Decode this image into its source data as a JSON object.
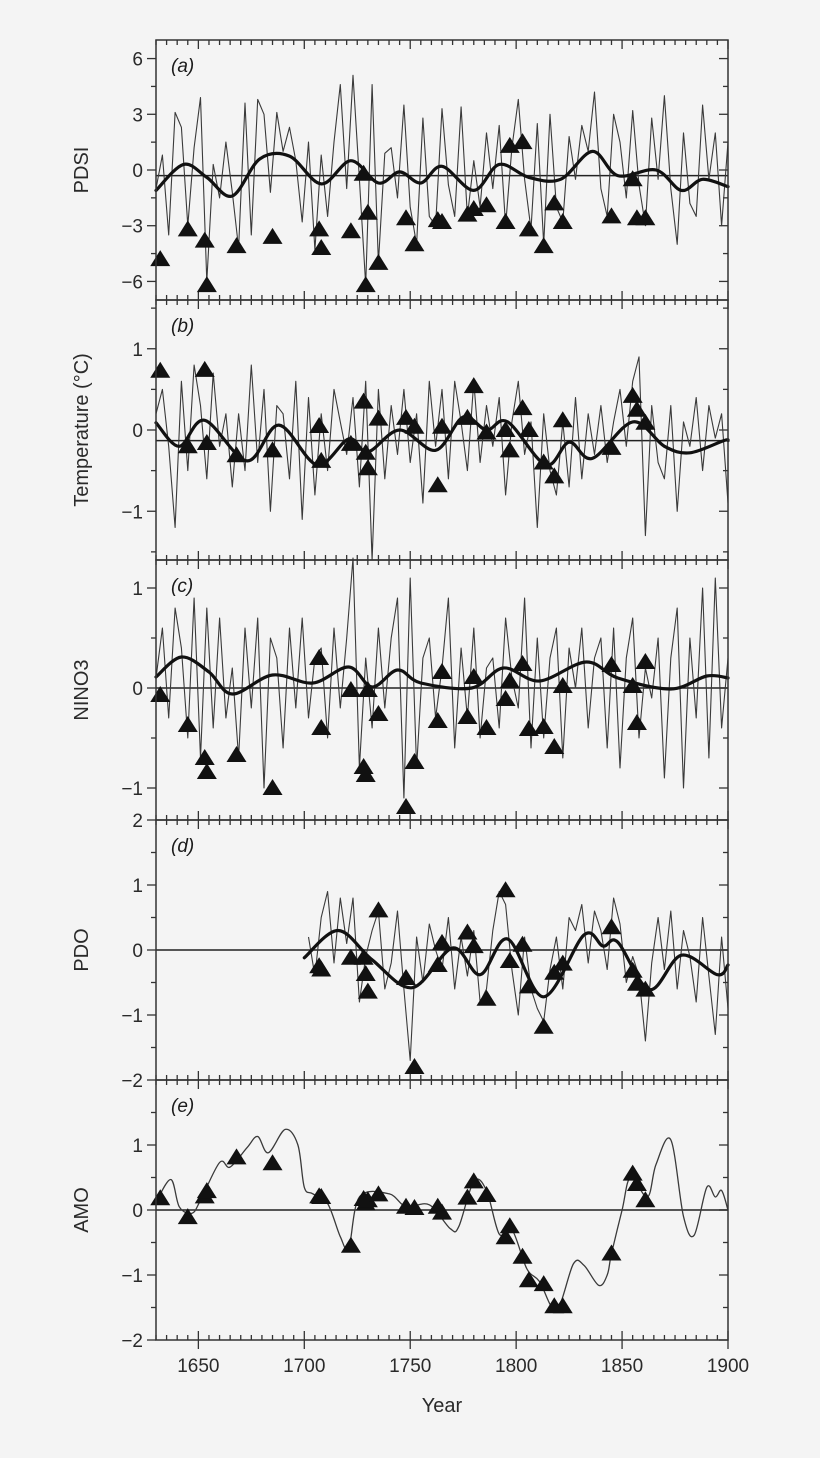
{
  "chart_data": {
    "type": "line",
    "xlabel": "Year",
    "xlim": [
      1630,
      1900
    ],
    "xticks": [
      1650,
      1700,
      1750,
      1800,
      1850,
      1900
    ],
    "annual_years": [
      1630,
      1633,
      1636,
      1639,
      1642,
      1645,
      1648,
      1651,
      1654,
      1657,
      1660,
      1663,
      1666,
      1669,
      1672,
      1675,
      1678,
      1681,
      1684,
      1687,
      1690,
      1693,
      1696,
      1699,
      1702,
      1705,
      1708,
      1711,
      1714,
      1717,
      1720,
      1723,
      1726,
      1729,
      1732,
      1735,
      1738,
      1741,
      1744,
      1747,
      1750,
      1753,
      1756,
      1759,
      1762,
      1765,
      1768,
      1771,
      1774,
      1777,
      1780,
      1783,
      1786,
      1789,
      1792,
      1795,
      1798,
      1801,
      1804,
      1807,
      1810,
      1813,
      1816,
      1819,
      1822,
      1825,
      1828,
      1831,
      1834,
      1837,
      1840,
      1843,
      1846,
      1849,
      1852,
      1855,
      1858,
      1861,
      1864,
      1867,
      1870,
      1873,
      1876,
      1879,
      1882,
      1885,
      1888,
      1891,
      1894,
      1897,
      1900
    ],
    "event_years": [
      1632,
      1645,
      1653,
      1654,
      1668,
      1685,
      1707,
      1708,
      1722,
      1728,
      1729,
      1730,
      1735,
      1748,
      1752,
      1763,
      1765,
      1777,
      1780,
      1786,
      1795,
      1797,
      1803,
      1806,
      1813,
      1818,
      1822,
      1845,
      1855,
      1857,
      1861
    ],
    "colors": {
      "line": "#3a3a3a",
      "smooth": "#111111",
      "marker": "#111111",
      "background": "#f4f4f4"
    },
    "marker": "filled-triangle",
    "panels": [
      {
        "label": "(a)",
        "ylabel": "PDSI",
        "ylim": [
          -7,
          7
        ],
        "yticks": [
          6,
          3,
          0,
          -3,
          -6
        ],
        "ytick_labels": [
          "6",
          "3",
          "0",
          "−3",
          "−6"
        ],
        "reference_line": -0.3,
        "annual": [
          -1.0,
          0.8,
          -3.5,
          3.1,
          2.3,
          -3.0,
          1.2,
          3.9,
          -6.0,
          0.3,
          -1.5,
          1.5,
          -1.2,
          -4.2,
          3.6,
          -3.5,
          3.8,
          3.0,
          -1.2,
          3.1,
          1.0,
          2.3,
          0.5,
          -2.8,
          1.5,
          -4.3,
          0.8,
          -2.5,
          1.5,
          4.6,
          -1.0,
          5.1,
          -0.5,
          -6.2,
          4.6,
          -5.0,
          0.9,
          1.2,
          -1.5,
          3.5,
          -2.0,
          -4.0,
          2.8,
          -2.5,
          -3.0,
          3.3,
          -0.8,
          -2.5,
          3.4,
          -2.5,
          0.5,
          -2.0,
          2.0,
          -1.0,
          2.4,
          -3.0,
          1.2,
          3.8,
          -0.5,
          -3.2,
          2.5,
          -4.0,
          3.0,
          -2.0,
          -2.8,
          1.8,
          -0.5,
          2.4,
          1.0,
          4.2,
          -1.0,
          -2.5,
          3.0,
          1.5,
          -1.5,
          3.2,
          -0.8,
          -3.0,
          2.8,
          -0.5,
          4.0,
          -1.0,
          -4.0,
          2.0,
          -1.8,
          -2.5,
          3.5,
          -0.5,
          2.0,
          -3.0,
          1.5
        ],
        "smooth": {
          "x": [
            1630,
            1643,
            1654,
            1666,
            1679,
            1693,
            1708,
            1722,
            1735,
            1745,
            1755,
            1765,
            1780,
            1792,
            1806,
            1821,
            1836,
            1848,
            1866,
            1878,
            1888,
            1900
          ],
          "y": [
            -1.1,
            0.3,
            -0.4,
            -1.4,
            0.6,
            0.75,
            -0.75,
            0.5,
            -0.7,
            -0.1,
            -0.7,
            0.2,
            -1.1,
            0.3,
            -0.4,
            -0.5,
            1.0,
            -0.3,
            0.0,
            -1.1,
            -0.5,
            -0.9
          ]
        },
        "events": [
          -4.8,
          -3.2,
          -3.8,
          -6.2,
          -4.1,
          -3.6,
          -3.2,
          -4.2,
          -3.3,
          -0.2,
          -6.2,
          -2.3,
          -5.0,
          -2.6,
          -4.0,
          -2.7,
          -2.8,
          -2.4,
          -2.1,
          -1.9,
          -2.8,
          1.3,
          1.5,
          -3.2,
          -4.1,
          -1.8,
          -2.8,
          -2.5,
          -0.5,
          -2.6,
          -2.6
        ]
      },
      {
        "label": "(b)",
        "ylabel": "Temperature (°C)",
        "ylim": [
          -1.6,
          1.6
        ],
        "yticks": [
          1,
          0,
          -1
        ],
        "ytick_labels": [
          "1",
          "0",
          "−1"
        ],
        "reference_line": -0.13,
        "annual": [
          0.2,
          0.5,
          -0.2,
          -1.2,
          0.6,
          -0.5,
          0.8,
          0.3,
          -0.6,
          0.7,
          -0.2,
          0.2,
          -0.7,
          0.2,
          -0.5,
          0.8,
          -0.4,
          0.5,
          -1.0,
          0.3,
          0.2,
          -0.6,
          0.6,
          -1.1,
          0.4,
          -0.8,
          0.2,
          -0.5,
          0.5,
          0.1,
          -0.3,
          0.4,
          -0.7,
          0.6,
          -1.6,
          0.5,
          -0.6,
          0.3,
          -0.3,
          0.5,
          -0.4,
          0.2,
          -0.9,
          0.6,
          -0.2,
          0.5,
          -0.6,
          0.6,
          0.1,
          -0.5,
          0.6,
          -0.4,
          0.3,
          -0.2,
          0.4,
          -0.8,
          0.1,
          0.6,
          -0.3,
          0.1,
          -1.2,
          0.2,
          -0.5,
          -0.8,
          0.1,
          -0.7,
          0.4,
          -0.6,
          0.2,
          -0.3,
          0.3,
          -0.4,
          0.1,
          0.5,
          -0.2,
          0.6,
          0.9,
          -1.3,
          0.3,
          -0.4,
          -0.6,
          0.3,
          -1.0,
          0.1,
          -0.2,
          0.4,
          -0.5,
          0.3,
          -0.1,
          0.2,
          -0.9
        ],
        "smooth": {
          "x": [
            1630,
            1641,
            1653,
            1673,
            1688,
            1706,
            1721,
            1730,
            1745,
            1762,
            1775,
            1786,
            1796,
            1814,
            1825,
            1836,
            1855,
            1870,
            1882,
            1898,
            1900
          ],
          "y": [
            0.09,
            -0.2,
            0.12,
            -0.38,
            0.06,
            -0.43,
            -0.11,
            -0.27,
            0.0,
            -0.25,
            0.16,
            0.0,
            0.1,
            -0.43,
            -0.15,
            -0.35,
            0.1,
            -0.2,
            -0.28,
            -0.13,
            -0.13
          ]
        },
        "events": [
          0.73,
          -0.2,
          0.74,
          -0.16,
          -0.31,
          -0.25,
          0.05,
          -0.38,
          -0.17,
          0.35,
          -0.28,
          -0.47,
          0.14,
          0.15,
          0.04,
          -0.68,
          0.04,
          0.15,
          0.54,
          -0.03,
          0.0,
          -0.25,
          0.27,
          0.0,
          -0.4,
          -0.57,
          0.12,
          -0.22,
          0.42,
          0.25,
          0.09
        ]
      },
      {
        "label": "(c)",
        "ylabel": "NINO3",
        "ylim": [
          -1.32,
          1.28
        ],
        "yticks": [
          1,
          0,
          -1
        ],
        "ytick_labels": [
          "1",
          "0",
          "−1"
        ],
        "reference_line": 0,
        "annual": [
          0.1,
          0.6,
          -0.3,
          0.8,
          0.4,
          -0.5,
          0.9,
          -0.7,
          0.8,
          -0.4,
          0.7,
          -0.3,
          0.2,
          -0.7,
          0.6,
          -0.2,
          0.7,
          -1.0,
          0.5,
          0.3,
          -0.6,
          0.6,
          -0.2,
          0.7,
          -0.3,
          0.3,
          0.4,
          -0.5,
          0.6,
          -0.2,
          0.5,
          1.3,
          -0.8,
          0.3,
          -0.4,
          0.6,
          -0.2,
          0.5,
          0.9,
          -1.1,
          1.1,
          -0.8,
          0.3,
          0.5,
          -0.3,
          0.2,
          0.9,
          -0.6,
          0.4,
          -0.3,
          0.6,
          -0.5,
          0.2,
          0.3,
          -0.4,
          0.7,
          0.1,
          -0.2,
          0.9,
          -0.6,
          0.5,
          -0.5,
          0.3,
          0.6,
          -0.7,
          0.4,
          0.0,
          0.6,
          -0.4,
          0.3,
          0.5,
          -0.6,
          0.6,
          -0.8,
          0.3,
          0.7,
          -0.5,
          0.2,
          -0.1,
          0.5,
          -0.9,
          0.3,
          0.8,
          -1.0,
          0.5,
          -0.3,
          1.0,
          -0.7,
          1.1,
          -0.4,
          0.3
        ],
        "smooth": {
          "x": [
            1630,
            1642,
            1655,
            1666,
            1685,
            1704,
            1721,
            1732,
            1744,
            1755,
            1779,
            1794,
            1811,
            1833,
            1848,
            1873,
            1890,
            1900
          ],
          "y": [
            0.11,
            0.31,
            0.16,
            -0.06,
            0.13,
            0.05,
            0.21,
            0.01,
            0.18,
            0.05,
            0.0,
            0.2,
            0.07,
            0.26,
            0.1,
            -0.01,
            0.12,
            0.1
          ]
        },
        "events": [
          -0.07,
          -0.37,
          -0.7,
          -0.84,
          -0.67,
          -1.0,
          0.3,
          -0.4,
          -0.02,
          -0.79,
          -0.87,
          -0.02,
          -0.26,
          -1.19,
          -0.74,
          -0.33,
          0.16,
          -0.29,
          0.11,
          -0.4,
          -0.11,
          0.07,
          0.24,
          -0.41,
          -0.39,
          -0.59,
          0.02,
          0.23,
          0.02,
          -0.35,
          0.26
        ]
      },
      {
        "label": "(d)",
        "ylabel": "PDO",
        "ylim": [
          -2,
          2
        ],
        "yticks": [
          2,
          1,
          0,
          -1,
          -2
        ],
        "ytick_labels": [
          "2",
          "1",
          "0",
          "−1",
          "−2"
        ],
        "reference_line": 0,
        "annual": [
          null,
          null,
          null,
          null,
          null,
          null,
          null,
          null,
          null,
          null,
          null,
          null,
          null,
          null,
          null,
          null,
          null,
          null,
          null,
          null,
          null,
          null,
          null,
          null,
          0.2,
          -0.4,
          0.5,
          0.9,
          -0.2,
          0.8,
          0.1,
          0.8,
          -0.8,
          -0.1,
          0.3,
          0.6,
          -0.6,
          -0.2,
          0.6,
          -0.6,
          -1.7,
          0.2,
          -0.5,
          0.4,
          0.0,
          -0.3,
          0.5,
          -0.6,
          0.2,
          -0.4,
          0.3,
          -0.8,
          -0.6,
          0.3,
          0.9,
          0.7,
          -0.3,
          -1.0,
          0.2,
          -0.6,
          -0.9,
          -1.1,
          -0.3,
          0.2,
          -0.6,
          0.5,
          0.3,
          0.7,
          -0.2,
          0.6,
          0.3,
          -0.3,
          0.8,
          0.4,
          -0.5,
          -0.1,
          -0.4,
          -1.4,
          -0.2,
          0.5,
          -0.3,
          0.6,
          -0.6,
          0.3,
          -0.1,
          -0.8,
          0.5,
          -0.4,
          -1.3,
          0.2,
          -0.9
        ],
        "smooth": {
          "x": [
            1700,
            1716,
            1732,
            1751,
            1770,
            1783,
            1796,
            1813,
            1832,
            1841,
            1848,
            1863,
            1878,
            1895,
            1900
          ],
          "y": [
            -0.12,
            0.3,
            -0.15,
            -0.58,
            0.03,
            -0.38,
            0.17,
            -0.72,
            0.23,
            0.06,
            0.12,
            -0.61,
            -0.08,
            -0.38,
            -0.23
          ]
        },
        "events": [
          null,
          null,
          null,
          null,
          null,
          null,
          -0.25,
          -0.3,
          -0.12,
          -0.12,
          -0.37,
          -0.64,
          0.61,
          -0.43,
          -1.8,
          -0.23,
          0.11,
          0.27,
          0.06,
          -0.75,
          0.92,
          -0.17,
          0.08,
          -0.56,
          -1.18,
          -0.35,
          -0.21,
          0.35,
          -0.32,
          -0.52,
          -0.61
        ]
      },
      {
        "label": "(e)",
        "ylabel": "AMO",
        "ylim": [
          -2,
          2
        ],
        "yticks": [
          1,
          0,
          -1,
          -2
        ],
        "ytick_labels": [
          "1",
          "0",
          "−1",
          "−2"
        ],
        "reference_line": 0,
        "series": {
          "x": [
            1630,
            1637,
            1641,
            1647,
            1651,
            1660,
            1665,
            1673,
            1678,
            1683,
            1691,
            1697,
            1700,
            1704,
            1711,
            1717,
            1721,
            1726,
            1740,
            1748,
            1759,
            1769,
            1773,
            1780,
            1786,
            1792,
            1798,
            1805,
            1811,
            1819,
            1827,
            1832,
            1839,
            1843,
            1845,
            1850,
            1854,
            1862,
            1866,
            1873,
            1879,
            1884,
            1890,
            1894,
            1897,
            1900
          ],
          "y": [
            0.12,
            0.47,
            0.05,
            -0.05,
            0.15,
            0.73,
            0.66,
            0.96,
            1.13,
            0.88,
            1.24,
            1.0,
            0.35,
            0.25,
            0.1,
            -0.41,
            -0.58,
            0.2,
            0.25,
            0.05,
            0.08,
            -0.29,
            -0.25,
            0.44,
            0.3,
            -0.37,
            -0.3,
            -0.9,
            -1.1,
            -1.54,
            -0.83,
            -0.85,
            -1.16,
            -1.0,
            -0.67,
            0.0,
            0.5,
            0.2,
            0.7,
            1.08,
            -0.1,
            -0.39,
            0.35,
            0.2,
            0.3,
            0.0
          ]
        },
        "events": [
          0.18,
          -0.11,
          0.21,
          0.29,
          0.81,
          0.72,
          0.21,
          0.2,
          -0.55,
          0.17,
          0.1,
          0.15,
          0.24,
          0.05,
          0.03,
          0.05,
          -0.04,
          0.19,
          0.44,
          0.23,
          -0.42,
          -0.25,
          -0.72,
          -1.08,
          -1.14,
          -1.48,
          -1.48,
          -0.67,
          0.56,
          0.4,
          0.15
        ]
      }
    ]
  }
}
